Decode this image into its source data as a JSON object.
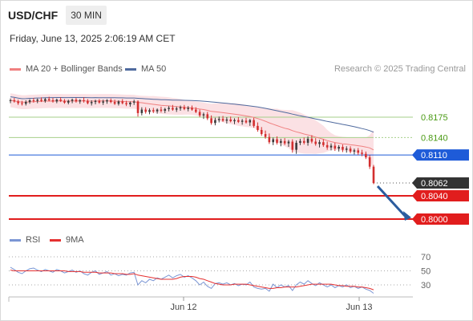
{
  "header": {
    "symbol": "USD/CHF",
    "timeframe": "30 MIN",
    "timestamp": "Friday, June 13, 2025 2:06:19 AM CET"
  },
  "legend": {
    "ma20_label": "MA 20 + Bollinger Bands",
    "ma50_label": "MA 50",
    "credit": "Research © 2025 Trading Central",
    "rsi_label": "RSI",
    "ma9_label": "9MA"
  },
  "colors": {
    "up": "#3a3a3a",
    "down": "#d32f2f",
    "ma20": "#f08080",
    "bands": "#fadadd",
    "ma50": "#4f6a9e",
    "blue_level": "#1e5bd8",
    "red_level": "#e11d1d",
    "green_level": "#a6cf8a",
    "green_text": "#4a9a14",
    "current": "#333333",
    "rsi": "#7b96d4",
    "rsi_ma": "#e53030",
    "arrow": "#2b5c9e"
  },
  "chart_data": [
    {
      "type": "candlestick",
      "title": "",
      "y_ticks": [
        0.8175,
        0.814,
        0.811,
        0.8062,
        0.804,
        0.8
      ],
      "x_tick_labels": [
        "Jun 12",
        "Jun 13"
      ],
      "price_levels": [
        {
          "label": "0.8175",
          "value": 0.8175,
          "kind": "green"
        },
        {
          "label": "0.8140",
          "value": 0.814,
          "kind": "green_dotted"
        },
        {
          "label": "0.8110",
          "value": 0.811,
          "kind": "blue"
        },
        {
          "label": "0.8062",
          "value": 0.8062,
          "kind": "current"
        },
        {
          "label": "0.8040",
          "value": 0.804,
          "kind": "red"
        },
        {
          "label": "0.8000",
          "value": 0.8,
          "kind": "red"
        }
      ],
      "arrow": {
        "from": 0.8062,
        "to": 0.8
      },
      "candles": [
        [
          0.8203,
          0.8207,
          0.8199,
          0.8204
        ],
        [
          0.8204,
          0.8208,
          0.82,
          0.8202
        ],
        [
          0.8202,
          0.8205,
          0.8196,
          0.8199
        ],
        [
          0.8199,
          0.8203,
          0.8195,
          0.8198
        ],
        [
          0.8198,
          0.8204,
          0.8195,
          0.8201
        ],
        [
          0.8201,
          0.8206,
          0.8198,
          0.8204
        ],
        [
          0.8204,
          0.8208,
          0.82,
          0.8203
        ],
        [
          0.8203,
          0.8207,
          0.8199,
          0.8205
        ],
        [
          0.8205,
          0.8209,
          0.8201,
          0.8203
        ],
        [
          0.8203,
          0.8208,
          0.82,
          0.8206
        ],
        [
          0.8206,
          0.821,
          0.8202,
          0.8204
        ],
        [
          0.8204,
          0.8208,
          0.82,
          0.8202
        ],
        [
          0.8202,
          0.8207,
          0.8199,
          0.8205
        ],
        [
          0.8205,
          0.8209,
          0.8201,
          0.8203
        ],
        [
          0.8203,
          0.8206,
          0.8198,
          0.82
        ],
        [
          0.82,
          0.8205,
          0.8197,
          0.8203
        ],
        [
          0.8203,
          0.8207,
          0.8199,
          0.8205
        ],
        [
          0.8205,
          0.8208,
          0.82,
          0.8202
        ],
        [
          0.8202,
          0.8206,
          0.8198,
          0.8204
        ],
        [
          0.8204,
          0.8209,
          0.82,
          0.8203
        ],
        [
          0.8203,
          0.8206,
          0.8197,
          0.8199
        ],
        [
          0.8199,
          0.8204,
          0.8195,
          0.8201
        ],
        [
          0.8201,
          0.8205,
          0.8197,
          0.8203
        ],
        [
          0.8203,
          0.8206,
          0.8198,
          0.82
        ],
        [
          0.82,
          0.8205,
          0.8196,
          0.8202
        ],
        [
          0.8202,
          0.8206,
          0.8198,
          0.8204
        ],
        [
          0.8204,
          0.8207,
          0.8199,
          0.8201
        ],
        [
          0.8201,
          0.8205,
          0.8196,
          0.8198
        ],
        [
          0.8198,
          0.8204,
          0.8195,
          0.8202
        ],
        [
          0.8202,
          0.8206,
          0.8197,
          0.8199
        ],
        [
          0.8199,
          0.8203,
          0.8194,
          0.8197
        ],
        [
          0.8197,
          0.8202,
          0.8193,
          0.82
        ],
        [
          0.82,
          0.8205,
          0.8196,
          0.8202
        ],
        [
          0.8202,
          0.8204,
          0.8176,
          0.8182
        ],
        [
          0.8182,
          0.8192,
          0.8178,
          0.8188
        ],
        [
          0.8188,
          0.8192,
          0.8181,
          0.8184
        ],
        [
          0.8184,
          0.819,
          0.818,
          0.8187
        ],
        [
          0.8187,
          0.8191,
          0.8182,
          0.8185
        ],
        [
          0.8185,
          0.819,
          0.8181,
          0.8188
        ],
        [
          0.8188,
          0.8193,
          0.8183,
          0.8186
        ],
        [
          0.8186,
          0.8191,
          0.8182,
          0.8189
        ],
        [
          0.8189,
          0.8194,
          0.8185,
          0.8191
        ],
        [
          0.8191,
          0.8196,
          0.8186,
          0.8188
        ],
        [
          0.8188,
          0.8193,
          0.8184,
          0.819
        ],
        [
          0.819,
          0.8195,
          0.8186,
          0.8192
        ],
        [
          0.8192,
          0.8196,
          0.8187,
          0.8189
        ],
        [
          0.8189,
          0.8194,
          0.8185,
          0.8191
        ],
        [
          0.8191,
          0.8195,
          0.8186,
          0.8188
        ],
        [
          0.8188,
          0.8192,
          0.8182,
          0.8184
        ],
        [
          0.8184,
          0.8188,
          0.8175,
          0.8178
        ],
        [
          0.8178,
          0.8183,
          0.8172,
          0.818
        ],
        [
          0.818,
          0.8184,
          0.817,
          0.8173
        ],
        [
          0.8173,
          0.8178,
          0.8162,
          0.8165
        ],
        [
          0.8165,
          0.8174,
          0.8161,
          0.817
        ],
        [
          0.817,
          0.8176,
          0.8166,
          0.8172
        ],
        [
          0.8172,
          0.8177,
          0.8167,
          0.8169
        ],
        [
          0.8169,
          0.8175,
          0.8164,
          0.8171
        ],
        [
          0.8171,
          0.8176,
          0.8166,
          0.8168
        ],
        [
          0.8168,
          0.8173,
          0.8163,
          0.817
        ],
        [
          0.817,
          0.8175,
          0.8165,
          0.8167
        ],
        [
          0.8167,
          0.8172,
          0.8162,
          0.8169
        ],
        [
          0.8169,
          0.8174,
          0.8164,
          0.8166
        ],
        [
          0.8166,
          0.8172,
          0.816,
          0.817
        ],
        [
          0.817,
          0.8174,
          0.8157,
          0.816
        ],
        [
          0.816,
          0.8166,
          0.815,
          0.8153
        ],
        [
          0.8153,
          0.8158,
          0.8143,
          0.8146
        ],
        [
          0.8146,
          0.8152,
          0.8138,
          0.8141
        ],
        [
          0.8141,
          0.8147,
          0.8129,
          0.8132
        ],
        [
          0.8132,
          0.814,
          0.8127,
          0.8137
        ],
        [
          0.8137,
          0.8142,
          0.8128,
          0.8131
        ],
        [
          0.8131,
          0.8138,
          0.8125,
          0.8134
        ],
        [
          0.8134,
          0.8139,
          0.8127,
          0.813
        ],
        [
          0.813,
          0.8136,
          0.8124,
          0.8133
        ],
        [
          0.8133,
          0.8137,
          0.8114,
          0.8119
        ],
        [
          0.8119,
          0.8135,
          0.8112,
          0.8131
        ],
        [
          0.8131,
          0.8138,
          0.8127,
          0.8134
        ],
        [
          0.8134,
          0.814,
          0.8128,
          0.8131
        ],
        [
          0.8131,
          0.8142,
          0.8126,
          0.8138
        ],
        [
          0.8138,
          0.8144,
          0.813,
          0.8133
        ],
        [
          0.8133,
          0.8139,
          0.8126,
          0.8129
        ],
        [
          0.8129,
          0.8136,
          0.8123,
          0.8132
        ],
        [
          0.8132,
          0.8137,
          0.8124,
          0.8127
        ],
        [
          0.8127,
          0.8133,
          0.8119,
          0.8123
        ],
        [
          0.8123,
          0.813,
          0.8118,
          0.8126
        ],
        [
          0.8126,
          0.8131,
          0.8117,
          0.8121
        ],
        [
          0.8121,
          0.8127,
          0.8116,
          0.8124
        ],
        [
          0.8124,
          0.8128,
          0.8115,
          0.8119
        ],
        [
          0.8119,
          0.8125,
          0.8114,
          0.8121
        ],
        [
          0.8121,
          0.8125,
          0.8113,
          0.8116
        ],
        [
          0.8116,
          0.8121,
          0.8111,
          0.8118
        ],
        [
          0.8118,
          0.8122,
          0.811,
          0.8114
        ],
        [
          0.8114,
          0.8119,
          0.8108,
          0.8112
        ],
        [
          0.8112,
          0.8116,
          0.8103,
          0.8106
        ],
        [
          0.8106,
          0.811,
          0.8086,
          0.809
        ],
        [
          0.809,
          0.8093,
          0.806,
          0.8062
        ]
      ]
    },
    {
      "type": "line",
      "title": "",
      "y_ticks": [
        70,
        50,
        30
      ],
      "series": [
        {
          "name": "RSI",
          "values": [
            55,
            52,
            48,
            46,
            50,
            53,
            54,
            51,
            49,
            52,
            50,
            48,
            52,
            50,
            47,
            49,
            51,
            48,
            50,
            46,
            44,
            48,
            50,
            45,
            47,
            49,
            44,
            46,
            43,
            45,
            44,
            47,
            48,
            30,
            36,
            33,
            38,
            36,
            40,
            38,
            41,
            44,
            40,
            43,
            45,
            41,
            43,
            40,
            36,
            30,
            34,
            28,
            25,
            32,
            33,
            31,
            33,
            30,
            32,
            29,
            31,
            30,
            34,
            27,
            25,
            24,
            25,
            21,
            31,
            26,
            30,
            27,
            29,
            22,
            30,
            34,
            31,
            36,
            32,
            29,
            33,
            30,
            27,
            30,
            26,
            29,
            27,
            30,
            26,
            28,
            25,
            27,
            24,
            22,
            18
          ]
        },
        {
          "name": "9MA",
          "values": [
            51,
            50,
            50,
            50,
            50,
            50,
            50,
            50,
            50,
            50,
            50,
            50,
            50,
            50,
            50,
            49,
            49,
            49,
            49,
            48,
            48,
            48,
            48,
            47,
            47,
            47,
            47,
            46,
            46,
            46,
            45,
            45,
            46,
            44,
            43,
            42,
            41,
            40,
            39,
            38,
            38,
            38,
            38,
            39,
            41,
            42,
            42,
            42,
            41,
            39,
            38,
            36,
            34,
            32,
            31,
            30,
            30,
            30,
            31,
            31,
            31,
            31,
            30,
            29,
            28,
            27,
            26,
            25,
            25,
            26,
            26,
            27,
            27,
            27,
            27,
            28,
            29,
            30,
            31,
            31,
            31,
            31,
            31,
            31,
            30,
            29,
            29,
            28,
            28,
            28,
            27,
            27,
            26,
            25,
            23
          ]
        }
      ]
    }
  ]
}
